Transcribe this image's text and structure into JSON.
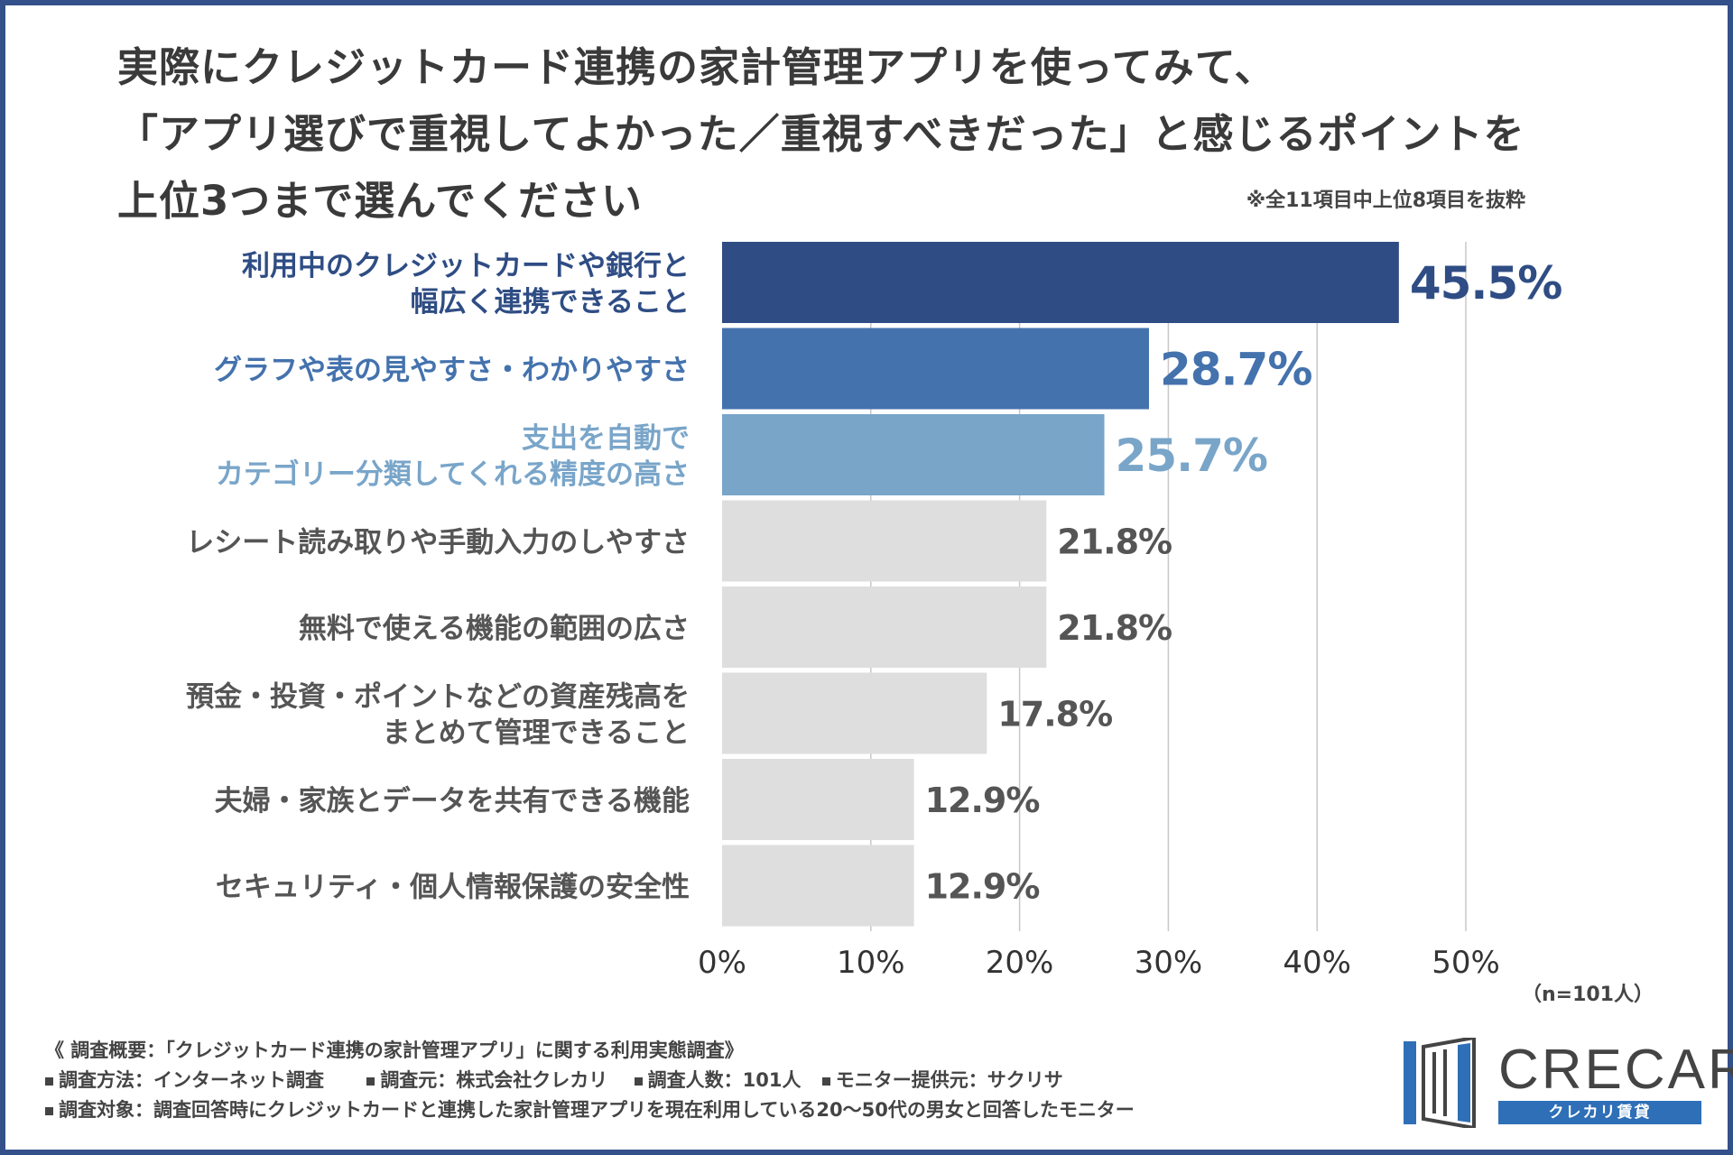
{
  "title_lines": [
    "実際にクレジットカード連携の家計管理アプリを使ってみて、",
    "「アプリ選びで重視してよかった／重視すべきだった」と感じるポイントを",
    "上位3つまで選んでください"
  ],
  "note": "※全11項目中上位8項目を抜粋",
  "sample_size": "（n=101人）",
  "colors": {
    "bar_1": "#2f4d84",
    "bar_2": "#4472ad",
    "bar_3": "#79a5c9",
    "bar_other": "#dedede",
    "text_other": "#555555",
    "grid": "#c8c8c8"
  },
  "chart_data": {
    "type": "bar",
    "orientation": "horizontal",
    "categories": [
      [
        "利用中のクレジットカードや銀行と",
        "幅広く連携できること"
      ],
      [
        "グラフや表の見やすさ・わかりやすさ"
      ],
      [
        "支出を自動で",
        "カテゴリー分類してくれる精度の高さ"
      ],
      [
        "レシート読み取りや手動入力のしやすさ"
      ],
      [
        "無料で使える機能の範囲の広さ"
      ],
      [
        "預金・投資・ポイントなどの資産残高を",
        "まとめて管理できること"
      ],
      [
        "夫婦・家族とデータを共有できる機能"
      ],
      [
        "セキュリティ・個人情報保護の安全性"
      ]
    ],
    "values": [
      45.5,
      28.7,
      25.7,
      21.8,
      21.8,
      17.8,
      12.9,
      12.9
    ],
    "value_labels": [
      "45.5%",
      "28.7%",
      "25.7%",
      "21.8%",
      "21.8%",
      "17.8%",
      "12.9%",
      "12.9%"
    ],
    "xlim": [
      0,
      50
    ],
    "ticks": [
      0,
      10,
      20,
      30,
      40,
      50
    ],
    "tick_labels": [
      "0%",
      "10%",
      "20%",
      "30%",
      "40%",
      "50%"
    ],
    "grid": true
  },
  "survey": {
    "heading": "《 調査概要：「クレジットカード連携の家計管理アプリ」に関する利用実態調査》",
    "method": "調査方法：インターネット調査",
    "source": "調査元：株式会社クレカリ",
    "respondents": "調査人数：101人",
    "provider": "モニター提供元：サクリサ",
    "target": "調査対象：調査回答時にクレジットカードと連携した家計管理アプリを現在利用している20〜50代の男女と回答したモニター"
  },
  "logo": {
    "name": "CRECARI",
    "subtitle": "クレカリ賃貸"
  }
}
